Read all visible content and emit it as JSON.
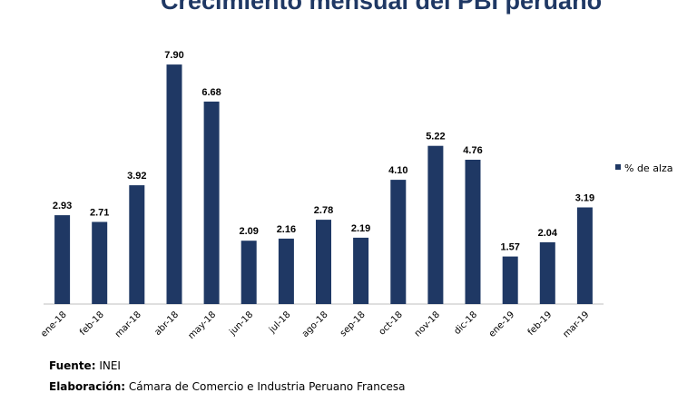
{
  "chart_data": {
    "type": "bar",
    "title": "Crecimiento mensual del PBI peruano",
    "xlabel": "",
    "ylabel": "",
    "ylim": [
      0,
      9
    ],
    "grid": false,
    "legend_position": "right",
    "categories": [
      "ene-18",
      "feb-18",
      "mar-18",
      "abr-18",
      "may-18",
      "jun-18",
      "jul-18",
      "ago-18",
      "sep-18",
      "oct-18",
      "nov-18",
      "dic-18",
      "ene-19",
      "feb-19",
      "mar-19"
    ],
    "series": [
      {
        "name": "% de alza",
        "color": "#1f3864",
        "values": [
          2.93,
          2.71,
          3.92,
          7.9,
          6.68,
          2.09,
          2.16,
          2.78,
          2.19,
          4.1,
          5.22,
          4.76,
          1.57,
          2.04,
          3.19
        ],
        "labels": [
          "2.93",
          "2.71",
          "3.92",
          "7.90",
          "6.68",
          "2.09",
          "2.16",
          "2.78",
          "2.19",
          "4.10",
          "5.22",
          "4.76",
          "1.57",
          "2.04",
          "3.19"
        ]
      }
    ]
  },
  "footer": {
    "source_label": "Fuente:",
    "source_value": "INEI",
    "credit_label": "Elaboración:",
    "credit_value": "Cámara de Comercio e Industria Peruano Francesa"
  }
}
